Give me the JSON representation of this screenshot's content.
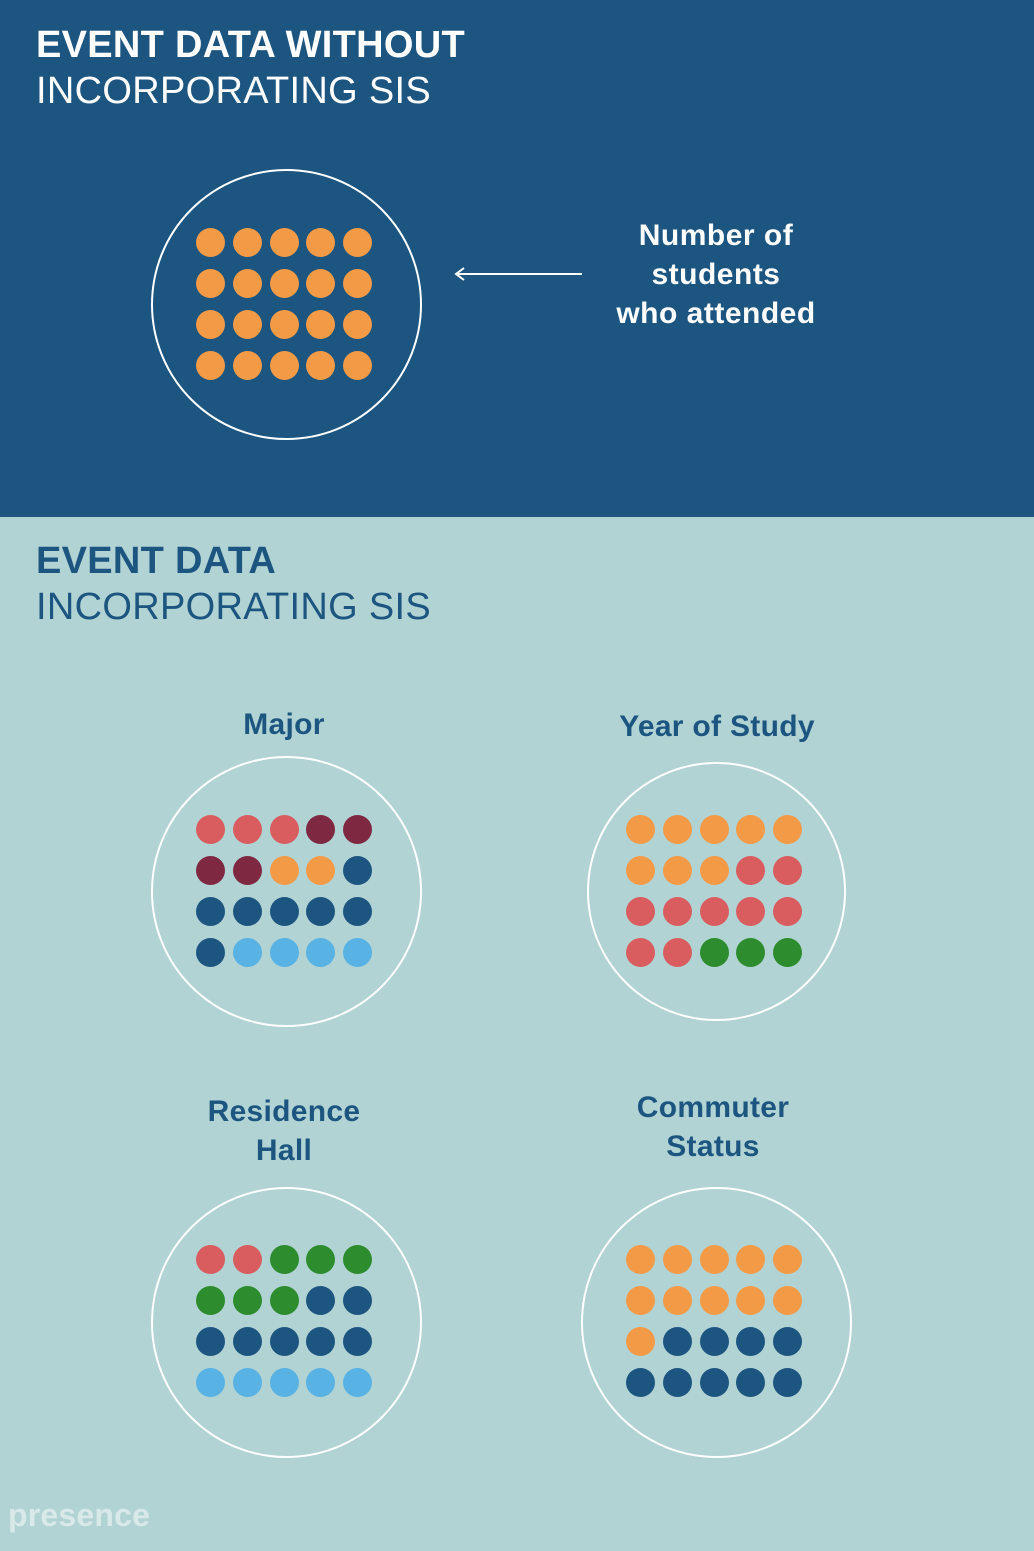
{
  "top": {
    "title_bold": "EVENT DATA WITHOUT",
    "title_light": "INCORPORATING SIS",
    "annotation": [
      "Number of",
      "students",
      "who attended"
    ]
  },
  "bottom": {
    "title_bold": "EVENT DATA",
    "title_light": "INCORPORATING SIS"
  },
  "colors": {
    "orange": "#f39a47",
    "coral": "#d95c5f",
    "maroon": "#7e2842",
    "navy": "#1c5580",
    "sky": "#58b2e3",
    "green": "#2d8c2d",
    "top_bg": "#1c5580",
    "bottom_bg": "#b1d3d4"
  },
  "groups": {
    "attendance": {
      "dots": [
        "orange",
        "orange",
        "orange",
        "orange",
        "orange",
        "orange",
        "orange",
        "orange",
        "orange",
        "orange",
        "orange",
        "orange",
        "orange",
        "orange",
        "orange",
        "orange",
        "orange",
        "orange",
        "orange",
        "orange"
      ]
    },
    "major": {
      "label": [
        "Major"
      ],
      "dots": [
        "coral",
        "coral",
        "coral",
        "maroon",
        "maroon",
        "maroon",
        "maroon",
        "orange",
        "orange",
        "navy",
        "navy",
        "navy",
        "navy",
        "navy",
        "navy",
        "navy",
        "sky",
        "sky",
        "sky",
        "sky"
      ]
    },
    "year": {
      "label": [
        "Year of Study"
      ],
      "dots": [
        "orange",
        "orange",
        "orange",
        "orange",
        "orange",
        "orange",
        "orange",
        "orange",
        "coral",
        "coral",
        "coral",
        "coral",
        "coral",
        "coral",
        "coral",
        "coral",
        "coral",
        "green",
        "green",
        "green"
      ]
    },
    "residence": {
      "label": [
        "Residence",
        "Hall"
      ],
      "dots": [
        "coral",
        "coral",
        "green",
        "green",
        "green",
        "green",
        "green",
        "green",
        "navy",
        "navy",
        "navy",
        "navy",
        "navy",
        "navy",
        "navy",
        "sky",
        "sky",
        "sky",
        "sky",
        "sky"
      ]
    },
    "commuter": {
      "label": [
        "Commuter",
        "Status"
      ],
      "dots": [
        "orange",
        "orange",
        "orange",
        "orange",
        "orange",
        "orange",
        "orange",
        "orange",
        "orange",
        "orange",
        "orange",
        "navy",
        "navy",
        "navy",
        "navy",
        "navy",
        "navy",
        "navy",
        "navy",
        "navy"
      ]
    }
  },
  "logo": "presence"
}
